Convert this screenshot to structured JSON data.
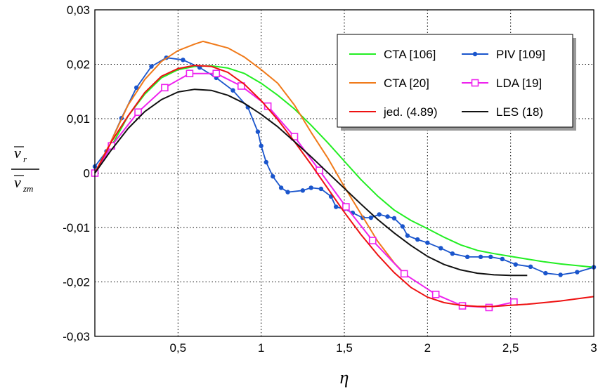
{
  "chart_data": {
    "type": "line",
    "title": "",
    "xlabel": "η",
    "ylabel": {
      "numerator": "v",
      "numerator_sub": "r",
      "denominator": "v",
      "denominator_sub": "zm"
    },
    "xlim": [
      0,
      3
    ],
    "ylim": [
      -0.03,
      0.03
    ],
    "x_ticks": [
      0.5,
      1,
      1.5,
      2,
      2.5,
      3
    ],
    "x_tick_labels": [
      "0,5",
      "1",
      "1,5",
      "2",
      "2,5",
      "3"
    ],
    "y_ticks": [
      -0.03,
      -0.02,
      -0.01,
      0,
      0.01,
      0.02,
      0.03
    ],
    "y_tick_labels": [
      "-0,03",
      "-0,02",
      "-0,01",
      "0",
      "0,01",
      "0,02",
      "0,03"
    ],
    "grid": true,
    "legend_position": "top-right",
    "series": [
      {
        "name": "CTA [106]",
        "color": "#22ee22",
        "marker": "none",
        "points": [
          [
            0,
            0
          ],
          [
            0.1,
            0.005
          ],
          [
            0.2,
            0.0105
          ],
          [
            0.3,
            0.0145
          ],
          [
            0.4,
            0.0175
          ],
          [
            0.5,
            0.019
          ],
          [
            0.6,
            0.0196
          ],
          [
            0.7,
            0.0197
          ],
          [
            0.8,
            0.0193
          ],
          [
            0.9,
            0.0183
          ],
          [
            1.0,
            0.0165
          ],
          [
            1.1,
            0.0143
          ],
          [
            1.2,
            0.0118
          ],
          [
            1.3,
            0.0088
          ],
          [
            1.4,
            0.0056
          ],
          [
            1.5,
            0.0022
          ],
          [
            1.6,
            -0.0012
          ],
          [
            1.7,
            -0.0042
          ],
          [
            1.8,
            -0.0068
          ],
          [
            1.9,
            -0.0087
          ],
          [
            2.0,
            -0.0102
          ],
          [
            2.1,
            -0.0118
          ],
          [
            2.2,
            -0.0132
          ],
          [
            2.3,
            -0.0142
          ],
          [
            2.4,
            -0.0148
          ],
          [
            2.5,
            -0.0153
          ],
          [
            2.6,
            -0.0158
          ],
          [
            2.7,
            -0.0163
          ],
          [
            2.8,
            -0.0167
          ],
          [
            2.9,
            -0.017
          ],
          [
            3.0,
            -0.0173
          ]
        ]
      },
      {
        "name": "PIV [109]",
        "color": "#1a55cc",
        "marker": "dot",
        "points": [
          [
            0,
            0.0012
          ],
          [
            0.07,
            0.004
          ],
          [
            0.16,
            0.0101
          ],
          [
            0.25,
            0.0157
          ],
          [
            0.34,
            0.0196
          ],
          [
            0.43,
            0.0212
          ],
          [
            0.53,
            0.0208
          ],
          [
            0.63,
            0.0194
          ],
          [
            0.73,
            0.0175
          ],
          [
            0.83,
            0.0152
          ],
          [
            0.92,
            0.0121
          ],
          [
            0.98,
            0.0076
          ],
          [
            1.0,
            0.005
          ],
          [
            1.03,
            0.002
          ],
          [
            1.07,
            -0.0006
          ],
          [
            1.12,
            -0.0027
          ],
          [
            1.16,
            -0.0035
          ],
          [
            1.25,
            -0.0032
          ],
          [
            1.3,
            -0.0027
          ],
          [
            1.36,
            -0.0029
          ],
          [
            1.42,
            -0.0043
          ],
          [
            1.45,
            -0.0062
          ],
          [
            1.5,
            -0.0066
          ],
          [
            1.55,
            -0.0073
          ],
          [
            1.61,
            -0.0082
          ],
          [
            1.66,
            -0.0082
          ],
          [
            1.71,
            -0.0076
          ],
          [
            1.76,
            -0.008
          ],
          [
            1.8,
            -0.0083
          ],
          [
            1.85,
            -0.0098
          ],
          [
            1.88,
            -0.0115
          ],
          [
            1.94,
            -0.0122
          ],
          [
            2.0,
            -0.0128
          ],
          [
            2.08,
            -0.0138
          ],
          [
            2.15,
            -0.0148
          ],
          [
            2.24,
            -0.0154
          ],
          [
            2.32,
            -0.0154
          ],
          [
            2.38,
            -0.0154
          ],
          [
            2.45,
            -0.0158
          ],
          [
            2.53,
            -0.0168
          ],
          [
            2.62,
            -0.0172
          ],
          [
            2.71,
            -0.0184
          ],
          [
            2.8,
            -0.0187
          ],
          [
            2.9,
            -0.0182
          ],
          [
            3.0,
            -0.0173
          ]
        ]
      },
      {
        "name": "CTA [20]",
        "color": "#f07a1a",
        "marker": "none",
        "points": [
          [
            0,
            0
          ],
          [
            0.1,
            0.006
          ],
          [
            0.2,
            0.0125
          ],
          [
            0.3,
            0.0172
          ],
          [
            0.4,
            0.0205
          ],
          [
            0.5,
            0.0225
          ],
          [
            0.6,
            0.0237
          ],
          [
            0.65,
            0.0242
          ],
          [
            0.7,
            0.0238
          ],
          [
            0.8,
            0.023
          ],
          [
            0.9,
            0.0213
          ],
          [
            1.0,
            0.019
          ],
          [
            1.1,
            0.0165
          ],
          [
            1.2,
            0.0125
          ],
          [
            1.3,
            0.0075
          ],
          [
            1.4,
            0.0028
          ],
          [
            1.5,
            -0.0025
          ],
          [
            1.6,
            -0.0075
          ],
          [
            1.7,
            -0.0125
          ],
          [
            1.8,
            -0.0165
          ],
          [
            1.85,
            -0.0181
          ]
        ]
      },
      {
        "name": "LDA [19]",
        "color": "#ee22ee",
        "marker": "open-square",
        "points": [
          [
            0,
            0
          ],
          [
            0.1,
            0.005
          ],
          [
            0.26,
            0.0112
          ],
          [
            0.42,
            0.0157
          ],
          [
            0.57,
            0.0183
          ],
          [
            0.73,
            0.0183
          ],
          [
            0.88,
            0.016
          ],
          [
            1.04,
            0.0123
          ],
          [
            1.2,
            0.0067
          ],
          [
            1.35,
            0.0005
          ],
          [
            1.51,
            -0.0062
          ],
          [
            1.67,
            -0.0124
          ],
          [
            1.86,
            -0.0185
          ],
          [
            2.05,
            -0.0223
          ],
          [
            2.21,
            -0.0244
          ],
          [
            2.37,
            -0.0247
          ],
          [
            2.52,
            -0.0237
          ]
        ]
      },
      {
        "name": "jed. (4.89)",
        "color": "#ee1111",
        "marker": "none",
        "points": [
          [
            0,
            0
          ],
          [
            0.1,
            0.0058
          ],
          [
            0.2,
            0.0105
          ],
          [
            0.3,
            0.0148
          ],
          [
            0.4,
            0.0178
          ],
          [
            0.5,
            0.0192
          ],
          [
            0.6,
            0.0198
          ],
          [
            0.7,
            0.0196
          ],
          [
            0.8,
            0.0185
          ],
          [
            0.9,
            0.0163
          ],
          [
            1.0,
            0.0133
          ],
          [
            1.1,
            0.0098
          ],
          [
            1.2,
            0.0058
          ],
          [
            1.3,
            0.0016
          ],
          [
            1.4,
            -0.0028
          ],
          [
            1.5,
            -0.0072
          ],
          [
            1.6,
            -0.0113
          ],
          [
            1.7,
            -0.015
          ],
          [
            1.8,
            -0.0183
          ],
          [
            1.9,
            -0.021
          ],
          [
            2.0,
            -0.0228
          ],
          [
            2.1,
            -0.0238
          ],
          [
            2.2,
            -0.0243
          ],
          [
            2.3,
            -0.0245
          ],
          [
            2.4,
            -0.0245
          ],
          [
            2.5,
            -0.0243
          ],
          [
            2.6,
            -0.0241
          ],
          [
            2.7,
            -0.0238
          ],
          [
            2.8,
            -0.0235
          ],
          [
            2.9,
            -0.0231
          ],
          [
            3.0,
            -0.0227
          ]
        ]
      },
      {
        "name": "LES (18)",
        "color": "#111111",
        "marker": "none",
        "points": [
          [
            0,
            0
          ],
          [
            0.1,
            0.0043
          ],
          [
            0.2,
            0.0082
          ],
          [
            0.3,
            0.0113
          ],
          [
            0.4,
            0.0135
          ],
          [
            0.5,
            0.0149
          ],
          [
            0.6,
            0.0154
          ],
          [
            0.7,
            0.0152
          ],
          [
            0.8,
            0.0143
          ],
          [
            0.9,
            0.0128
          ],
          [
            1.0,
            0.0108
          ],
          [
            1.1,
            0.0085
          ],
          [
            1.2,
            0.0058
          ],
          [
            1.3,
            0.003
          ],
          [
            1.4,
            0.0001
          ],
          [
            1.5,
            -0.0028
          ],
          [
            1.6,
            -0.0057
          ],
          [
            1.7,
            -0.0085
          ],
          [
            1.8,
            -0.011
          ],
          [
            1.9,
            -0.0133
          ],
          [
            2.0,
            -0.0153
          ],
          [
            2.1,
            -0.0168
          ],
          [
            2.2,
            -0.0178
          ],
          [
            2.3,
            -0.0184
          ],
          [
            2.4,
            -0.0187
          ],
          [
            2.5,
            -0.0188
          ],
          [
            2.6,
            -0.0188
          ]
        ]
      }
    ]
  },
  "legend": {
    "items": [
      {
        "label": "CTA [106]",
        "color": "#22ee22",
        "marker": "none"
      },
      {
        "label": "PIV [109]",
        "color": "#1a55cc",
        "marker": "dot"
      },
      {
        "label": "CTA [20]",
        "color": "#f07a1a",
        "marker": "none"
      },
      {
        "label": "LDA [19]",
        "color": "#ee22ee",
        "marker": "open-square"
      },
      {
        "label": "jed. (4.89)",
        "color": "#ee1111",
        "marker": "none"
      },
      {
        "label": "LES (18)",
        "color": "#111111",
        "marker": "none"
      }
    ]
  }
}
